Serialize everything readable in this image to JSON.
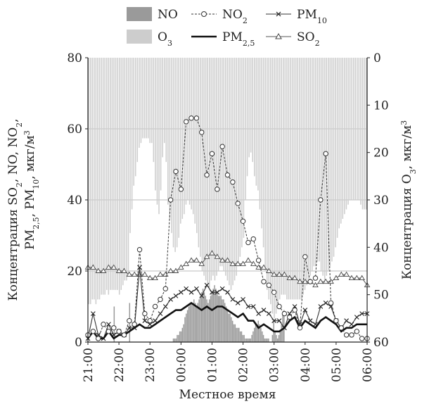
{
  "chart_data": {
    "type": "combo",
    "xlabel": "Местное время",
    "ylabel_left_lines": [
      "Концентрация SO",
      "2",
      ", NO, NO",
      "2",
      ",",
      "PM",
      "2,5",
      ", PM",
      "10",
      ", мкг/м",
      "3"
    ],
    "ylabel_right": [
      "Концентрация O",
      "3",
      ", мкг/м",
      "3"
    ],
    "ylim_left": [
      0,
      80
    ],
    "ylim_right_inverted": [
      0,
      60
    ],
    "yticks_left": [
      "0",
      "20",
      "40",
      "60",
      "80"
    ],
    "yticks_right": [
      "0",
      "10",
      "20",
      "30",
      "40",
      "50",
      "60"
    ],
    "xticks": [
      "21:00",
      "22:00",
      "23:00",
      "00:00",
      "01:00",
      "02:00",
      "03:00",
      "04:00",
      "05:00",
      "06:00"
    ],
    "x_start": "21:00",
    "x_end": "06:00",
    "step_minutes": 10,
    "grid": "horizontal",
    "legend": [
      {
        "key": "NO",
        "sub": "",
        "style": "bar-dark"
      },
      {
        "key": "NO",
        "sub": "2",
        "style": "dashed-circle"
      },
      {
        "key": "PM",
        "sub": "10",
        "style": "line-x"
      },
      {
        "key": "O",
        "sub": "3",
        "style": "bar-light"
      },
      {
        "key": "PM",
        "sub": "2,5",
        "style": "thick-line"
      },
      {
        "key": "SO",
        "sub": "2",
        "style": "line-triangle"
      }
    ],
    "series": {
      "O3": [
        52,
        52,
        51,
        51,
        52,
        51,
        51,
        50,
        50,
        50,
        49,
        50,
        49,
        49,
        49,
        49,
        49,
        50,
        49,
        48,
        47,
        47,
        46,
        37,
        32,
        27,
        25,
        22,
        19,
        18,
        17,
        17,
        17,
        17,
        18,
        18,
        22,
        28,
        31,
        33,
        28,
        21,
        18,
        22,
        31,
        34,
        37,
        40,
        41,
        40,
        38,
        35,
        34,
        33,
        31,
        30,
        31,
        32,
        33,
        35,
        37,
        40,
        42,
        45,
        46,
        47,
        48,
        49,
        47,
        46,
        47,
        46,
        45,
        44,
        44,
        45,
        46,
        47,
        48,
        49,
        48,
        47,
        46,
        44,
        42,
        40,
        38,
        30,
        25,
        21,
        20,
        22,
        25,
        27,
        28,
        32,
        36,
        40,
        45,
        49,
        51,
        52,
        54,
        55,
        54,
        53,
        51,
        50,
        50,
        50,
        51,
        51,
        51,
        51,
        51,
        51,
        51,
        51,
        51,
        50,
        49,
        48,
        47,
        46,
        45,
        44,
        44,
        43,
        43,
        45,
        46,
        47,
        46,
        45,
        44,
        43,
        42,
        40,
        38,
        36,
        35,
        34,
        33,
        32,
        31,
        30,
        30,
        30,
        30,
        30,
        30,
        31,
        32,
        32,
        32
      ],
      "NO": [
        0,
        0,
        0,
        0,
        0,
        0,
        0,
        0,
        0,
        0,
        0,
        0,
        0,
        0,
        0,
        0,
        0,
        0,
        0,
        0,
        10,
        0,
        0,
        0,
        0,
        0,
        0,
        0,
        0,
        0,
        0,
        0,
        11,
        0,
        0,
        0,
        0,
        0,
        0,
        0,
        0,
        0,
        0,
        0,
        0,
        0,
        0,
        0,
        0,
        0,
        0,
        0,
        0,
        0,
        0,
        0,
        0,
        0,
        0,
        0,
        0,
        0,
        0,
        0,
        0,
        0,
        1,
        1,
        1,
        2,
        2,
        3,
        3,
        4,
        5,
        7,
        8,
        9,
        10,
        11,
        11,
        11,
        12,
        11,
        10,
        11,
        12,
        13,
        14,
        15,
        14,
        13,
        12,
        11,
        12,
        13,
        14,
        15,
        16,
        15,
        14,
        13,
        13,
        13,
        12,
        12,
        11,
        10,
        9,
        8,
        8,
        7,
        6,
        5,
        5,
        4,
        4,
        4,
        3,
        3,
        2,
        2,
        1,
        1,
        1,
        1,
        1,
        2,
        3,
        4,
        5,
        5,
        6,
        5,
        4,
        3,
        2,
        1,
        1,
        1,
        1,
        0,
        0,
        2,
        6,
        3,
        2,
        1,
        2,
        3,
        5,
        8,
        9,
        0,
        0,
        0,
        0,
        0,
        0,
        0,
        0,
        0,
        0,
        0,
        0,
        0,
        0,
        0,
        0,
        0,
        0,
        0,
        0,
        0,
        0,
        0,
        0,
        0,
        0,
        0,
        0,
        0,
        0,
        0,
        0,
        0,
        0,
        0,
        0,
        0,
        0,
        0,
        0,
        0,
        0,
        0,
        0,
        0,
        0,
        0,
        0,
        0,
        0,
        0,
        0,
        0,
        0,
        0,
        0,
        0,
        0,
        0,
        0,
        0,
        0,
        0,
        0
      ],
      "NO2_x": [
        0,
        1,
        2,
        3,
        4,
        5,
        6,
        7,
        8,
        9,
        10,
        11,
        12,
        13,
        14,
        15,
        16,
        17,
        18,
        19,
        20,
        21,
        22,
        23,
        24,
        25,
        26,
        27,
        28,
        29,
        30,
        31,
        32,
        33,
        34,
        35,
        36,
        37,
        38,
        39,
        40,
        41,
        42,
        43,
        44,
        45,
        46,
        47,
        48,
        49,
        50,
        51,
        52,
        53,
        54
      ],
      "NO2": [
        2,
        3,
        1,
        5,
        3,
        4,
        3,
        2,
        6,
        5,
        26,
        8,
        6,
        10,
        12,
        15,
        40,
        48,
        43,
        62,
        63,
        63,
        59,
        47,
        53,
        43,
        55,
        47,
        45,
        39,
        34,
        28,
        29,
        23,
        17,
        16,
        14,
        10,
        8,
        7,
        9,
        4,
        24,
        17,
        18,
        40,
        53,
        11,
        6,
        4,
        2,
        2,
        3,
        1,
        1
      ],
      "PM10_x": [
        0,
        1,
        2,
        3,
        4,
        5,
        6,
        7,
        8,
        9,
        10,
        11,
        12,
        13,
        14,
        15,
        16,
        17,
        18,
        19,
        20,
        21,
        22,
        23,
        24,
        25,
        26,
        27,
        28,
        29,
        30,
        31,
        32,
        33,
        34,
        35,
        36,
        37,
        38,
        39,
        40,
        41,
        42,
        43,
        44,
        45,
        46,
        47,
        48,
        49,
        50,
        51,
        52,
        53,
        54
      ],
      "PM10": [
        1,
        8,
        2,
        1,
        5,
        2,
        3,
        2,
        4,
        4,
        21,
        6,
        5,
        6,
        8,
        10,
        12,
        13,
        14,
        15,
        14,
        15,
        13,
        16,
        14,
        14,
        15,
        14,
        12,
        11,
        12,
        10,
        10,
        8,
        9,
        8,
        6,
        6,
        4,
        8,
        10,
        5,
        9,
        6,
        5,
        10,
        11,
        10,
        6,
        4,
        6,
        5,
        7,
        8,
        8
      ],
      "PM25_x": [
        0,
        1,
        2,
        3,
        4,
        5,
        6,
        7,
        8,
        9,
        10,
        11,
        12,
        13,
        14,
        15,
        16,
        17,
        18,
        19,
        20,
        21,
        22,
        23,
        24,
        25,
        26,
        27,
        28,
        29,
        30,
        31,
        32,
        33,
        34,
        35,
        36,
        37,
        38,
        39,
        40,
        41,
        42,
        43,
        44,
        45,
        46,
        47,
        48,
        49,
        50,
        51,
        52,
        53,
        54
      ],
      "PM25": [
        1,
        3,
        1,
        1,
        3,
        1,
        2,
        2,
        3,
        4,
        5,
        4,
        4,
        5,
        6,
        7,
        8,
        9,
        9,
        10,
        11,
        10,
        9,
        10,
        9,
        10,
        10,
        9,
        8,
        7,
        8,
        6,
        6,
        4,
        5,
        4,
        3,
        3,
        4,
        6,
        7,
        4,
        6,
        5,
        4,
        6,
        7,
        6,
        5,
        3,
        4,
        4,
        5,
        5,
        5
      ],
      "SO2_x": [
        0,
        1,
        2,
        3,
        4,
        5,
        6,
        7,
        8,
        9,
        10,
        11,
        12,
        13,
        14,
        15,
        16,
        17,
        18,
        19,
        20,
        21,
        22,
        23,
        24,
        25,
        26,
        27,
        28,
        29,
        30,
        31,
        32,
        33,
        34,
        35,
        36,
        37,
        38,
        39,
        40,
        41,
        42,
        43,
        44,
        45,
        46,
        47,
        48,
        49,
        50,
        51,
        52,
        53,
        54
      ],
      "SO2": [
        21,
        21,
        20,
        20,
        21,
        21,
        20,
        20,
        19,
        19,
        19,
        19,
        18,
        18,
        19,
        19,
        20,
        20,
        21,
        22,
        23,
        23,
        22,
        24,
        25,
        24,
        23,
        23,
        22,
        22,
        22,
        23,
        22,
        21,
        21,
        20,
        19,
        19,
        19,
        18,
        18,
        17,
        17,
        17,
        16,
        17,
        17,
        17,
        18,
        19,
        19,
        18,
        18,
        18,
        16
      ]
    }
  }
}
